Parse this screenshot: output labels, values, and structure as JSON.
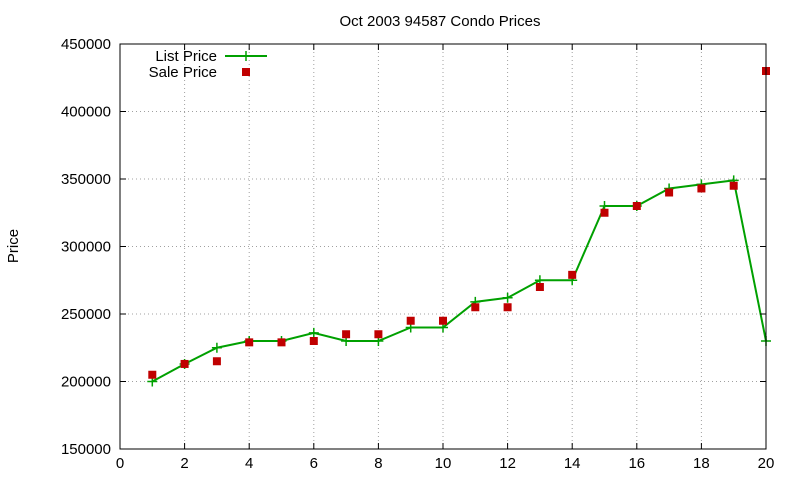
{
  "chart_data": {
    "type": "line",
    "title": "Oct 2003 94587 Condo Prices",
    "xlabel": "",
    "ylabel": "Price",
    "xlim": [
      0,
      20
    ],
    "ylim": [
      150000,
      450000
    ],
    "xticks": [
      0,
      2,
      4,
      6,
      8,
      10,
      12,
      14,
      16,
      18,
      20
    ],
    "yticks": [
      150000,
      200000,
      250000,
      300000,
      350000,
      400000,
      450000
    ],
    "grid": true,
    "legend_position": "top-left",
    "series": [
      {
        "name": "List Price",
        "style": "line-plus",
        "color": "#00a000",
        "x": [
          1,
          2,
          3,
          4,
          5,
          6,
          7,
          8,
          9,
          10,
          11,
          12,
          13,
          14,
          15,
          16,
          17,
          18,
          19,
          20
        ],
        "y": [
          200000,
          213000,
          225000,
          230000,
          230000,
          236000,
          230000,
          230000,
          240000,
          240000,
          259000,
          262000,
          275000,
          275000,
          330000,
          330000,
          343000,
          346000,
          349000,
          230000
        ]
      },
      {
        "name": "Sale Price",
        "style": "square-points",
        "color": "#c00000",
        "x": [
          1,
          2,
          3,
          4,
          5,
          6,
          7,
          8,
          9,
          10,
          11,
          12,
          13,
          14,
          15,
          16,
          17,
          18,
          19,
          20
        ],
        "y": [
          205000,
          213000,
          215000,
          229000,
          229000,
          230000,
          235000,
          235000,
          245000,
          245000,
          255000,
          255000,
          270000,
          279000,
          325000,
          330000,
          340000,
          343000,
          345000,
          430000
        ]
      }
    ]
  }
}
